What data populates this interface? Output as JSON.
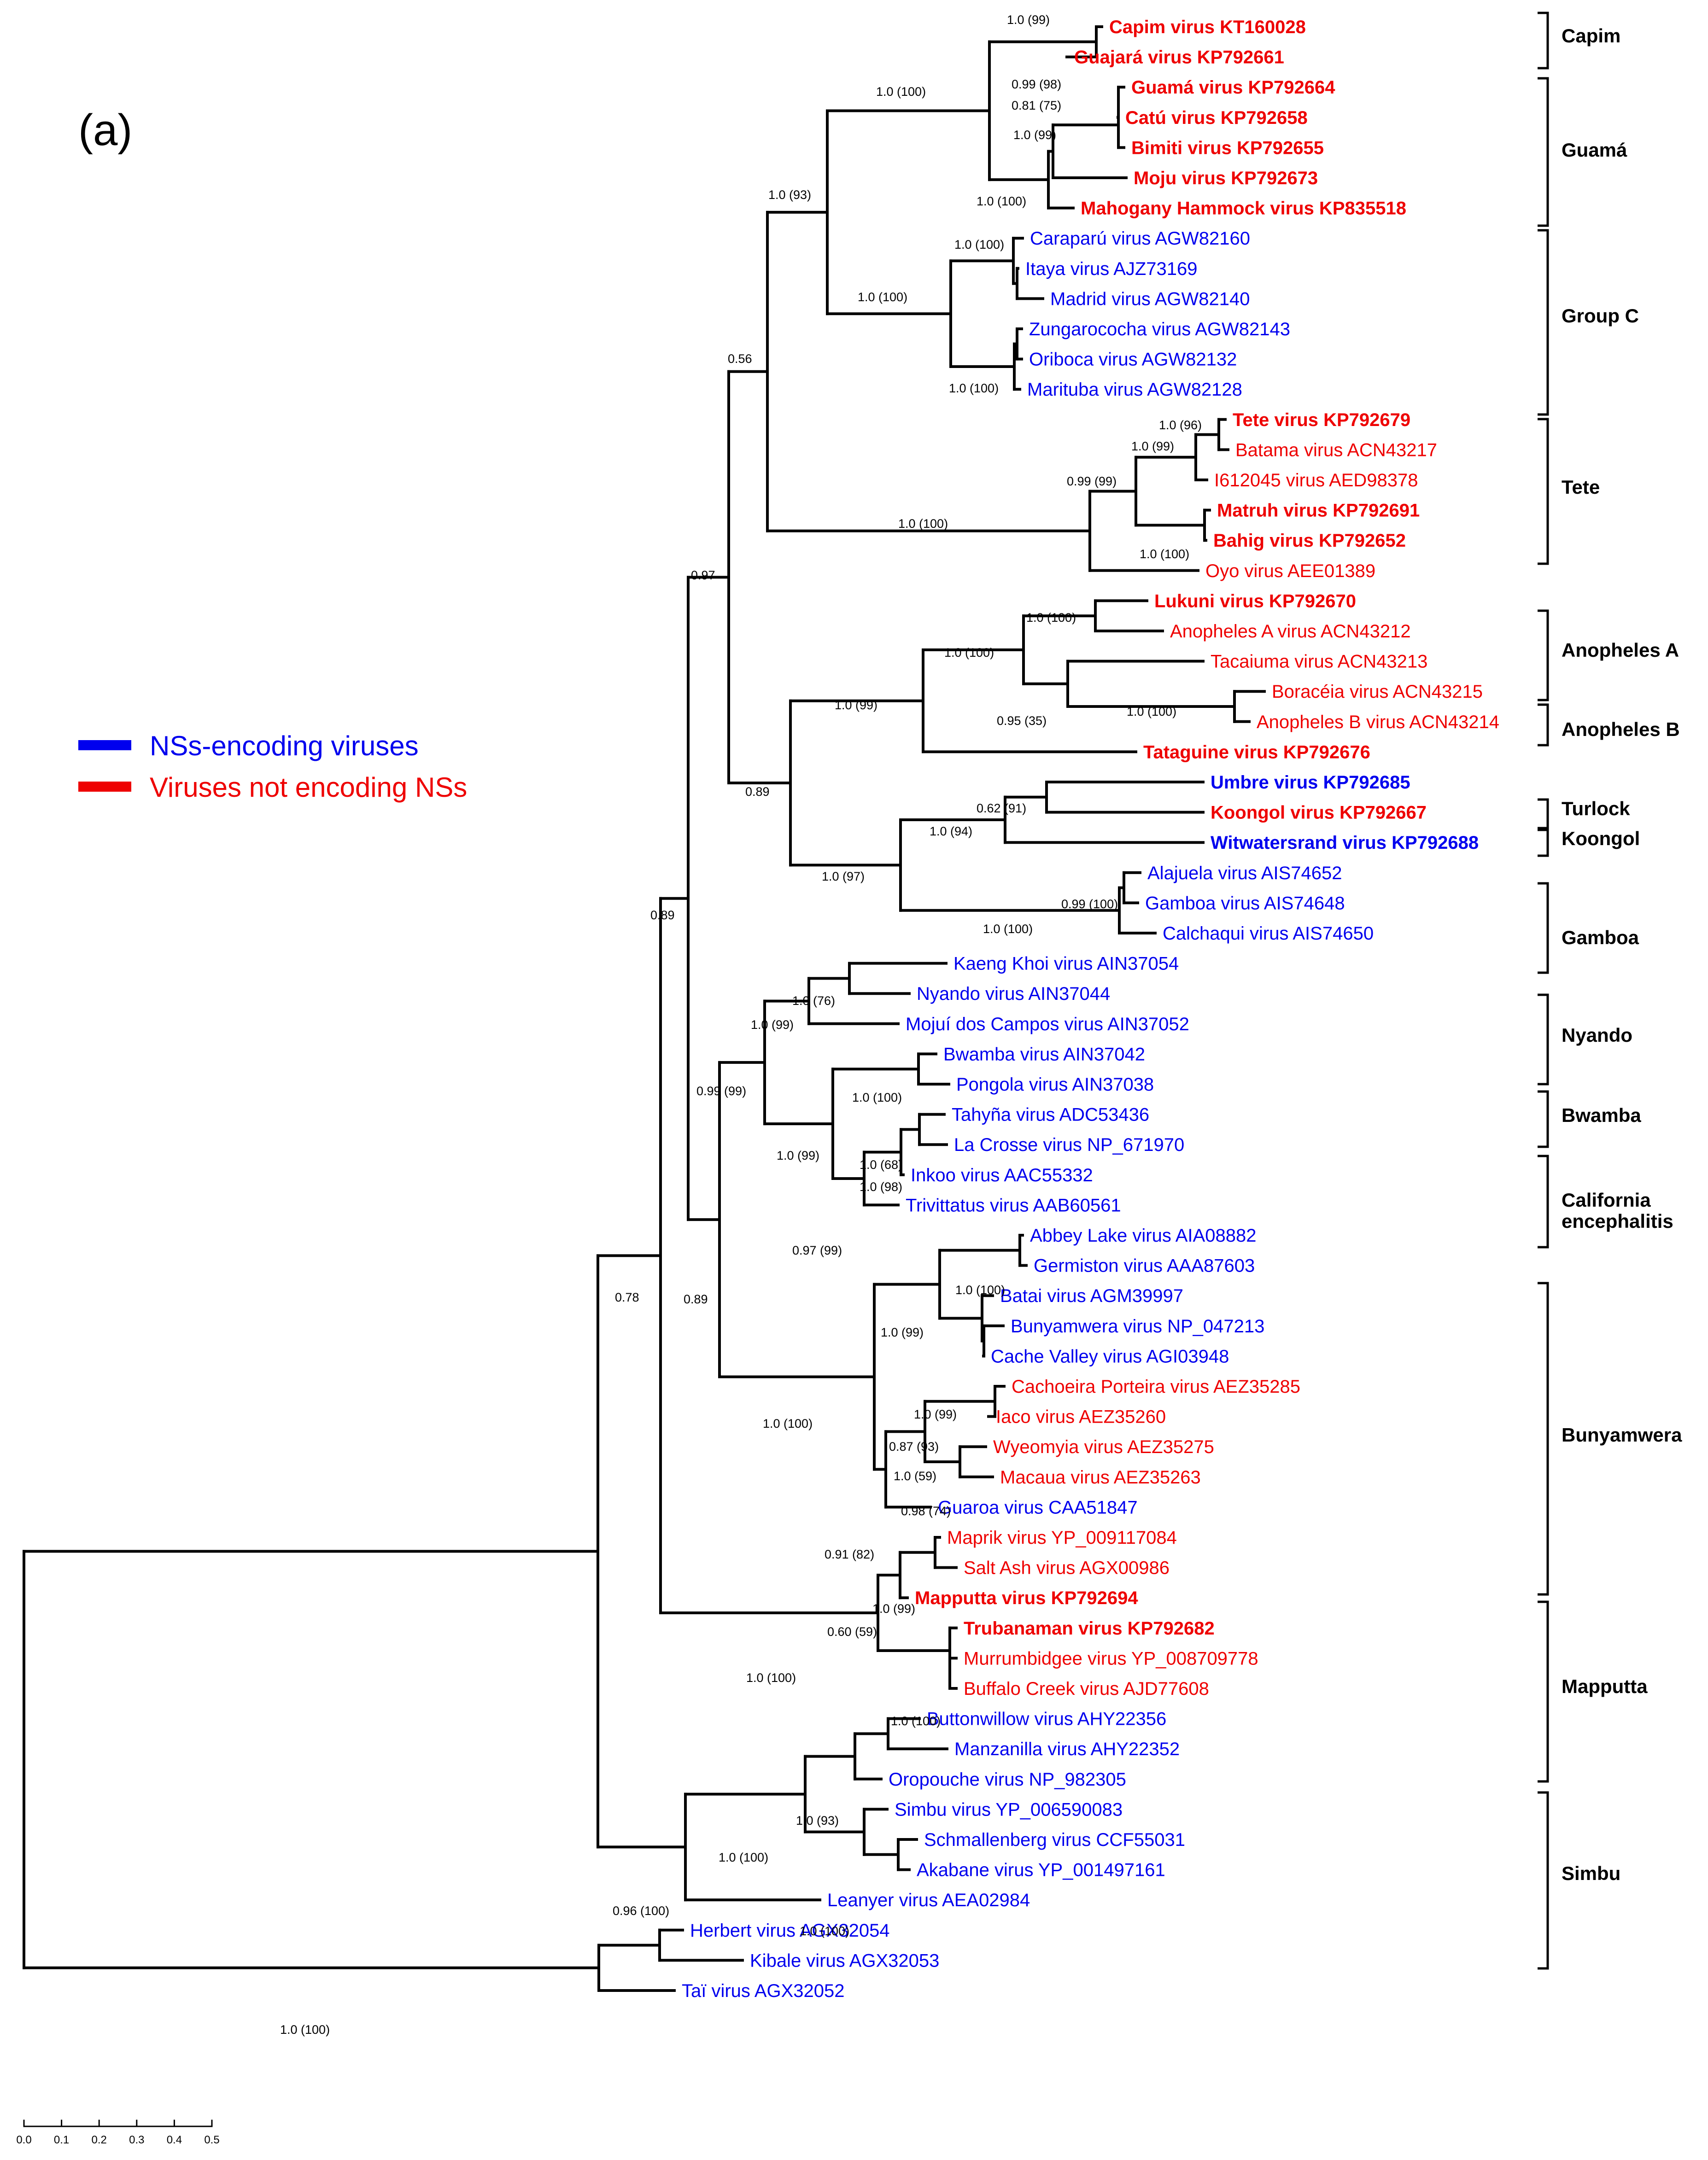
{
  "panel_label": "(a)",
  "legend": [
    {
      "label": "NSs-encoding viruses",
      "color": "#0000ee"
    },
    {
      "label": "Viruses not encoding NSs",
      "color": "#ee0000"
    }
  ],
  "colors": {
    "blue": "#0000ee",
    "red": "#ee0000",
    "black": "#000000"
  },
  "taxa": [
    {
      "label": "Capim virus KT160028",
      "color": "red",
      "bold": true
    },
    {
      "label": "Guajará virus KP792661",
      "color": "red",
      "bold": true
    },
    {
      "label": "Guamá virus KP792664",
      "color": "red",
      "bold": true
    },
    {
      "label": "Catú virus KP792658",
      "color": "red",
      "bold": true
    },
    {
      "label": "Bimiti virus KP792655",
      "color": "red",
      "bold": true
    },
    {
      "label": "Moju virus KP792673",
      "color": "red",
      "bold": true
    },
    {
      "label": "Mahogany Hammock virus KP835518",
      "color": "red",
      "bold": true
    },
    {
      "label": "Caraparú virus AGW82160",
      "color": "blue",
      "bold": false
    },
    {
      "label": "Itaya virus AJZ73169",
      "color": "blue",
      "bold": false
    },
    {
      "label": "Madrid virus AGW82140",
      "color": "blue",
      "bold": false
    },
    {
      "label": "Zungarococha virus AGW82143",
      "color": "blue",
      "bold": false
    },
    {
      "label": "Oriboca virus AGW82132",
      "color": "blue",
      "bold": false
    },
    {
      "label": "Marituba virus AGW82128",
      "color": "blue",
      "bold": false
    },
    {
      "label": "Tete virus KP792679",
      "color": "red",
      "bold": true
    },
    {
      "label": "Batama virus ACN43217",
      "color": "red",
      "bold": false
    },
    {
      "label": "I612045 virus AED98378",
      "color": "red",
      "bold": false
    },
    {
      "label": "Matruh virus KP792691",
      "color": "red",
      "bold": true
    },
    {
      "label": "Bahig virus KP792652",
      "color": "red",
      "bold": true
    },
    {
      "label": "Oyo virus AEE01389",
      "color": "red",
      "bold": false
    },
    {
      "label": "Lukuni virus KP792670",
      "color": "red",
      "bold": true
    },
    {
      "label": "Anopheles A virus ACN43212",
      "color": "red",
      "bold": false
    },
    {
      "label": "Tacaiuma virus ACN43213",
      "color": "red",
      "bold": false
    },
    {
      "label": "Boracéia virus ACN43215",
      "color": "red",
      "bold": false
    },
    {
      "label": "Anopheles B virus ACN43214",
      "color": "red",
      "bold": false
    },
    {
      "label": "Tataguine virus KP792676",
      "color": "red",
      "bold": true
    },
    {
      "label": "Umbre virus KP792685",
      "color": "blue",
      "bold": true
    },
    {
      "label": "Koongol virus KP792667",
      "color": "red",
      "bold": true
    },
    {
      "label": "Witwatersrand virus KP792688",
      "color": "blue",
      "bold": true
    },
    {
      "label": "Alajuela virus AIS74652",
      "color": "blue",
      "bold": false
    },
    {
      "label": "Gamboa virus AIS74648",
      "color": "blue",
      "bold": false
    },
    {
      "label": "Calchaqui virus AIS74650",
      "color": "blue",
      "bold": false
    },
    {
      "label": "Kaeng Khoi virus AIN37054",
      "color": "blue",
      "bold": false
    },
    {
      "label": "Nyando virus AIN37044",
      "color": "blue",
      "bold": false
    },
    {
      "label": "Mojuí dos Campos virus AIN37052",
      "color": "blue",
      "bold": false
    },
    {
      "label": "Bwamba virus AIN37042",
      "color": "blue",
      "bold": false
    },
    {
      "label": "Pongola virus AIN37038",
      "color": "blue",
      "bold": false
    },
    {
      "label": "Tahyña virus ADC53436",
      "color": "blue",
      "bold": false
    },
    {
      "label": "La Crosse virus NP_671970",
      "color": "blue",
      "bold": false
    },
    {
      "label": "Inkoo virus AAC55332",
      "color": "blue",
      "bold": false
    },
    {
      "label": "Trivittatus virus AAB60561",
      "color": "blue",
      "bold": false
    },
    {
      "label": "Abbey Lake virus AIA08882",
      "color": "blue",
      "bold": false
    },
    {
      "label": "Germiston virus AAA87603",
      "color": "blue",
      "bold": false
    },
    {
      "label": "Batai virus AGM39997",
      "color": "blue",
      "bold": false
    },
    {
      "label": "Bunyamwera virus NP_047213",
      "color": "blue",
      "bold": false
    },
    {
      "label": "Cache Valley virus AGI03948",
      "color": "blue",
      "bold": false
    },
    {
      "label": "Cachoeira Porteira virus AEZ35285",
      "color": "red",
      "bold": false
    },
    {
      "label": "Iaco virus AEZ35260",
      "color": "red",
      "bold": false
    },
    {
      "label": "Wyeomyia virus AEZ35275",
      "color": "red",
      "bold": false
    },
    {
      "label": "Macaua virus AEZ35263",
      "color": "red",
      "bold": false
    },
    {
      "label": "Guaroa virus CAA51847",
      "color": "blue",
      "bold": false
    },
    {
      "label": "Maprik virus YP_009117084",
      "color": "red",
      "bold": false
    },
    {
      "label": "Salt Ash virus AGX00986",
      "color": "red",
      "bold": false
    },
    {
      "label": "Mapputta virus KP792694",
      "color": "red",
      "bold": true
    },
    {
      "label": "Trubanaman virus KP792682",
      "color": "red",
      "bold": true
    },
    {
      "label": "Murrumbidgee virus YP_008709778",
      "color": "red",
      "bold": false
    },
    {
      "label": "Buffalo Creek virus AJD77608",
      "color": "red",
      "bold": false
    },
    {
      "label": "Buttonwillow virus AHY22356",
      "color": "blue",
      "bold": false
    },
    {
      "label": "Manzanilla virus AHY22352",
      "color": "blue",
      "bold": false
    },
    {
      "label": "Oropouche virus NP_982305",
      "color": "blue",
      "bold": false
    },
    {
      "label": "Simbu virus YP_006590083",
      "color": "blue",
      "bold": false
    },
    {
      "label": "Schmallenberg virus CCF55031",
      "color": "blue",
      "bold": false
    },
    {
      "label": "Akabane virus YP_001497161",
      "color": "blue",
      "bold": false
    },
    {
      "label": "Leanyer virus AEA02984",
      "color": "blue",
      "bold": false
    },
    {
      "label": "Herbert virus AGX32054",
      "color": "blue",
      "bold": false
    },
    {
      "label": "Kibale virus AGX32053",
      "color": "blue",
      "bold": false
    },
    {
      "label": "Taï virus AGX32052",
      "color": "blue",
      "bold": false
    }
  ],
  "support_values": [
    "1.0 (99)",
    "0.99 (98)",
    "0.81 (75)",
    "1.0 (99)",
    "1.0 (100)",
    "1.0 (100)",
    "1.0 (100)",
    "1.0 (100)",
    "1.0 (100)",
    "1.0 (93)",
    "0.56",
    "1.0 (96)",
    "1.0 (99)",
    "0.99 (99)",
    "1.0 (100)",
    "1.0 (100)",
    "0.97",
    "1.0 (100)",
    "1.0 (100)",
    "0.95 (35)",
    "1.0 (100)",
    "1.0 (99)",
    "0.89",
    "0.62 (91)",
    "1.0 (94)",
    "0.99 (100)",
    "1.0 (100)",
    "1.0 (97)",
    "0.89",
    "1.0 (76)",
    "1.0 (99)",
    "0.99 (99)",
    "1.0 (100)",
    "1.0 (68)",
    "1.0 (98)",
    "0.97 (99)",
    "1.0 (99)",
    "0.89",
    "1.0 (100)",
    "1.0 (99)",
    "1.0 (99)",
    "0.87 (93)",
    "1.0 (59)",
    "0.98 (74)",
    "0.91 (82)",
    "1.0 (100)",
    "0.78",
    "1.0 (99)",
    "0.60 (59)",
    "1.0 (100)",
    "1.0 (100)",
    "1.0 (93)",
    "1.0 (100)",
    "1.0 (100)",
    "0.96 (100)",
    "1.0 (100)"
  ],
  "clades": [
    {
      "label": "Capim"
    },
    {
      "label": "Guamá"
    },
    {
      "label": "Group C"
    },
    {
      "label": "Tete"
    },
    {
      "label": "Anopheles A"
    },
    {
      "label": "Anopheles B"
    },
    {
      "label": "Turlock"
    },
    {
      "label": "Koongol"
    },
    {
      "label": "Gamboa"
    },
    {
      "label": "Nyando"
    },
    {
      "label": "Bwamba"
    },
    {
      "label": "California encephalitis"
    },
    {
      "label": "Bunyamwera"
    },
    {
      "label": "Mapputta"
    },
    {
      "label": "Simbu"
    }
  ],
  "scale_bar": {
    "ticks": [
      "0.0",
      "0.1",
      "0.2",
      "0.3",
      "0.4",
      "0.5"
    ]
  }
}
